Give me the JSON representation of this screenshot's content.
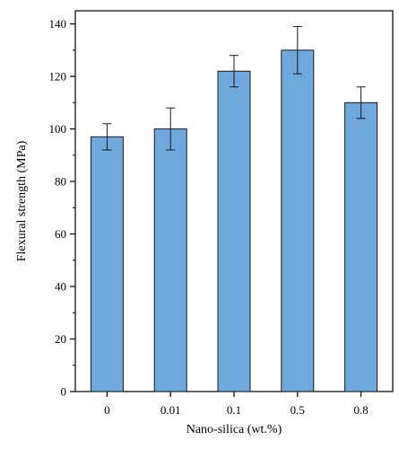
{
  "chart_data": {
    "type": "bar",
    "title": "",
    "xlabel": "Nano-silica (wt.%)",
    "ylabel": "Flexural strength (MPa)",
    "categories": [
      "0",
      "0.01",
      "0.1",
      "0.5",
      "0.8"
    ],
    "values": [
      97,
      100,
      122,
      130,
      110
    ],
    "error": [
      5,
      8,
      6,
      9,
      6
    ],
    "ylim": [
      0,
      145
    ],
    "yticks": [
      0,
      20,
      40,
      60,
      80,
      100,
      120,
      140
    ],
    "grid": false,
    "legend": "none",
    "colors": {
      "bar": "#6fa8dc",
      "edge": "#1a1a1a",
      "axis": "#000000"
    }
  }
}
